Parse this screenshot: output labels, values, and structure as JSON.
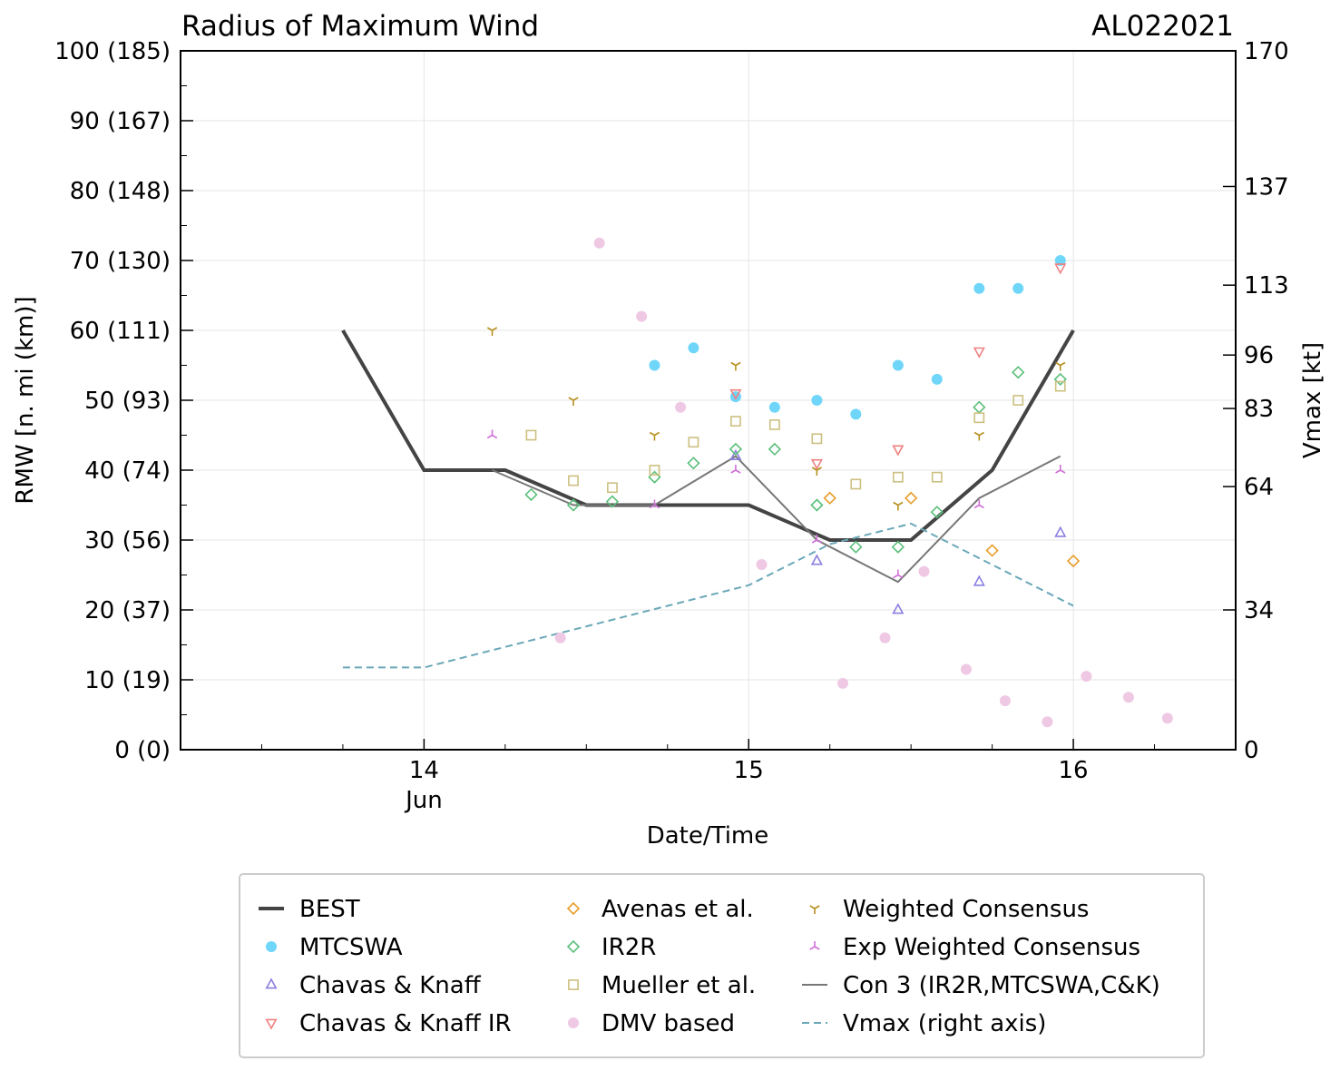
{
  "chart_data": {
    "type": "scatter",
    "title": "Radius of Maximum Wind",
    "storm_id": "AL022021",
    "xlabel": "Date/Time",
    "ylabel": "RMW [n. mi (km)]",
    "y2label": "Vmax [kt]",
    "xlim": [
      13.25,
      16.5
    ],
    "ylim": [
      0,
      100
    ],
    "y2lim": [
      0,
      170
    ],
    "x_ticks": [
      {
        "value": 14,
        "label": "14",
        "sublabel": "Jun"
      },
      {
        "value": 15,
        "label": "15",
        "sublabel": ""
      },
      {
        "value": 16,
        "label": "16",
        "sublabel": ""
      }
    ],
    "y_ticks": [
      {
        "value": 0,
        "label": "0 (0)"
      },
      {
        "value": 10,
        "label": "10 (19)"
      },
      {
        "value": 20,
        "label": "20 (37)"
      },
      {
        "value": 30,
        "label": "30 (56)"
      },
      {
        "value": 40,
        "label": "40 (74)"
      },
      {
        "value": 50,
        "label": "50 (93)"
      },
      {
        "value": 60,
        "label": "60 (111)"
      },
      {
        "value": 70,
        "label": "70 (130)"
      },
      {
        "value": 80,
        "label": "80 (148)"
      },
      {
        "value": 90,
        "label": "90 (167)"
      },
      {
        "value": 100,
        "label": "100 (185)"
      }
    ],
    "y2_ticks": [
      {
        "value": 0,
        "label": "0"
      },
      {
        "value": 34,
        "label": "34"
      },
      {
        "value": 64,
        "label": "64"
      },
      {
        "value": 83,
        "label": "83"
      },
      {
        "value": 96,
        "label": "96"
      },
      {
        "value": 113,
        "label": "113"
      },
      {
        "value": 137,
        "label": "137"
      },
      {
        "value": 170,
        "label": "170"
      }
    ],
    "series": [
      {
        "name": "BEST",
        "kind": "line",
        "color": "#444444",
        "x": [
          13.75,
          14.0,
          14.25,
          14.5,
          14.75,
          15.0,
          15.25,
          15.5,
          15.75,
          16.0
        ],
        "y": [
          60,
          40,
          40,
          35,
          35,
          35,
          30,
          30,
          40,
          60
        ]
      },
      {
        "name": "MTCSWA",
        "kind": "marker",
        "marker": "circle",
        "color": "#6fd6fa",
        "x": [
          14.71,
          14.83,
          14.96,
          15.08,
          15.21,
          15.33,
          15.46,
          15.58,
          15.71,
          15.83,
          15.96
        ],
        "y": [
          55,
          57.5,
          50.5,
          49,
          50,
          48,
          55,
          53,
          66,
          66,
          70
        ]
      },
      {
        "name": "Chavas & Knaff",
        "kind": "marker",
        "marker": "triangle-up",
        "color": "#8a7fe0",
        "x": [
          14.96,
          15.21,
          15.46,
          15.71,
          15.96
        ],
        "y": [
          42,
          27,
          20,
          24,
          31
        ]
      },
      {
        "name": "Chavas & Knaff IR",
        "kind": "marker",
        "marker": "triangle-down",
        "color": "#f08080",
        "x": [
          14.96,
          15.21,
          15.46,
          15.71,
          15.96
        ],
        "y": [
          51,
          41,
          43,
          57,
          69
        ]
      },
      {
        "name": "Avenas et al.",
        "kind": "marker",
        "marker": "diamond",
        "color": "#e89c28",
        "x": [
          15.25,
          15.5,
          15.75,
          16.0
        ],
        "y": [
          36,
          36,
          28.5,
          27
        ]
      },
      {
        "name": "IR2R",
        "kind": "marker",
        "marker": "diamond-open",
        "color": "#5bbf7a",
        "x": [
          14.33,
          14.46,
          14.58,
          14.71,
          14.83,
          14.96,
          15.08,
          15.21,
          15.33,
          15.46,
          15.58,
          15.71,
          15.83,
          15.96
        ],
        "y": [
          36.5,
          35,
          35.5,
          39,
          41,
          43,
          43,
          35,
          29,
          29,
          34,
          49,
          54,
          53
        ]
      },
      {
        "name": "Mueller et al.",
        "kind": "marker",
        "marker": "square",
        "color": "#ccc080",
        "x": [
          14.33,
          14.46,
          14.58,
          14.71,
          14.83,
          14.96,
          15.08,
          15.21,
          15.33,
          15.46,
          15.58,
          15.71,
          15.83,
          15.96
        ],
        "y": [
          45,
          38.5,
          37.5,
          40,
          44,
          47,
          46.5,
          44.5,
          38,
          39,
          39,
          47.5,
          50,
          52
        ]
      },
      {
        "name": "DMV based",
        "kind": "marker",
        "marker": "circle",
        "color": "#efc8e4",
        "x": [
          14.42,
          14.54,
          14.67,
          14.79,
          15.04,
          15.29,
          15.42,
          15.54,
          15.67,
          15.79,
          15.92,
          16.04,
          16.17,
          16.29
        ],
        "y": [
          16,
          72.5,
          62,
          49,
          26.5,
          9.5,
          16,
          25.5,
          11.5,
          7,
          4,
          10.5,
          7.5,
          4.5
        ]
      },
      {
        "name": "Weighted Consensus",
        "kind": "marker",
        "marker": "tri-down",
        "color": "#b89020",
        "x": [
          14.21,
          14.46,
          14.71,
          14.96,
          15.21,
          15.46,
          15.71,
          15.96
        ],
        "y": [
          60,
          50,
          45,
          55,
          40,
          35,
          45,
          55
        ]
      },
      {
        "name": "Exp Weighted Consensus",
        "kind": "marker",
        "marker": "tri-up",
        "color": "#d070d8",
        "x": [
          14.21,
          14.71,
          14.96,
          15.21,
          15.46,
          15.71,
          15.96
        ],
        "y": [
          45,
          35,
          40,
          30,
          25,
          35,
          40
        ]
      },
      {
        "name": "Con 3 (IR2R,MTCSWA,C&K)",
        "kind": "line",
        "color": "#777777",
        "x": [
          14.21,
          14.46,
          14.71,
          14.96,
          15.21,
          15.46,
          15.71,
          15.96
        ],
        "y": [
          40,
          35,
          35,
          42,
          30,
          24,
          36,
          42
        ]
      },
      {
        "name": "Vmax (right axis)",
        "kind": "dashed",
        "axis": "right",
        "color": "#6aa8b8",
        "x": [
          13.75,
          14.0,
          14.25,
          14.5,
          14.75,
          15.0,
          15.25,
          15.5,
          15.75,
          16.0
        ],
        "y": [
          20,
          20,
          25,
          30,
          35,
          40,
          50,
          55,
          45,
          35
        ]
      }
    ],
    "legend": {
      "position": "bottom",
      "columns": [
        [
          "BEST",
          "MTCSWA",
          "Chavas & Knaff",
          "Chavas & Knaff IR"
        ],
        [
          "Avenas et al.",
          "IR2R",
          "Mueller et al.",
          "DMV based"
        ],
        [
          "Weighted Consensus",
          "Exp Weighted Consensus",
          "Con 3 (IR2R,MTCSWA,C&K)",
          "Vmax (right axis)"
        ]
      ]
    }
  }
}
